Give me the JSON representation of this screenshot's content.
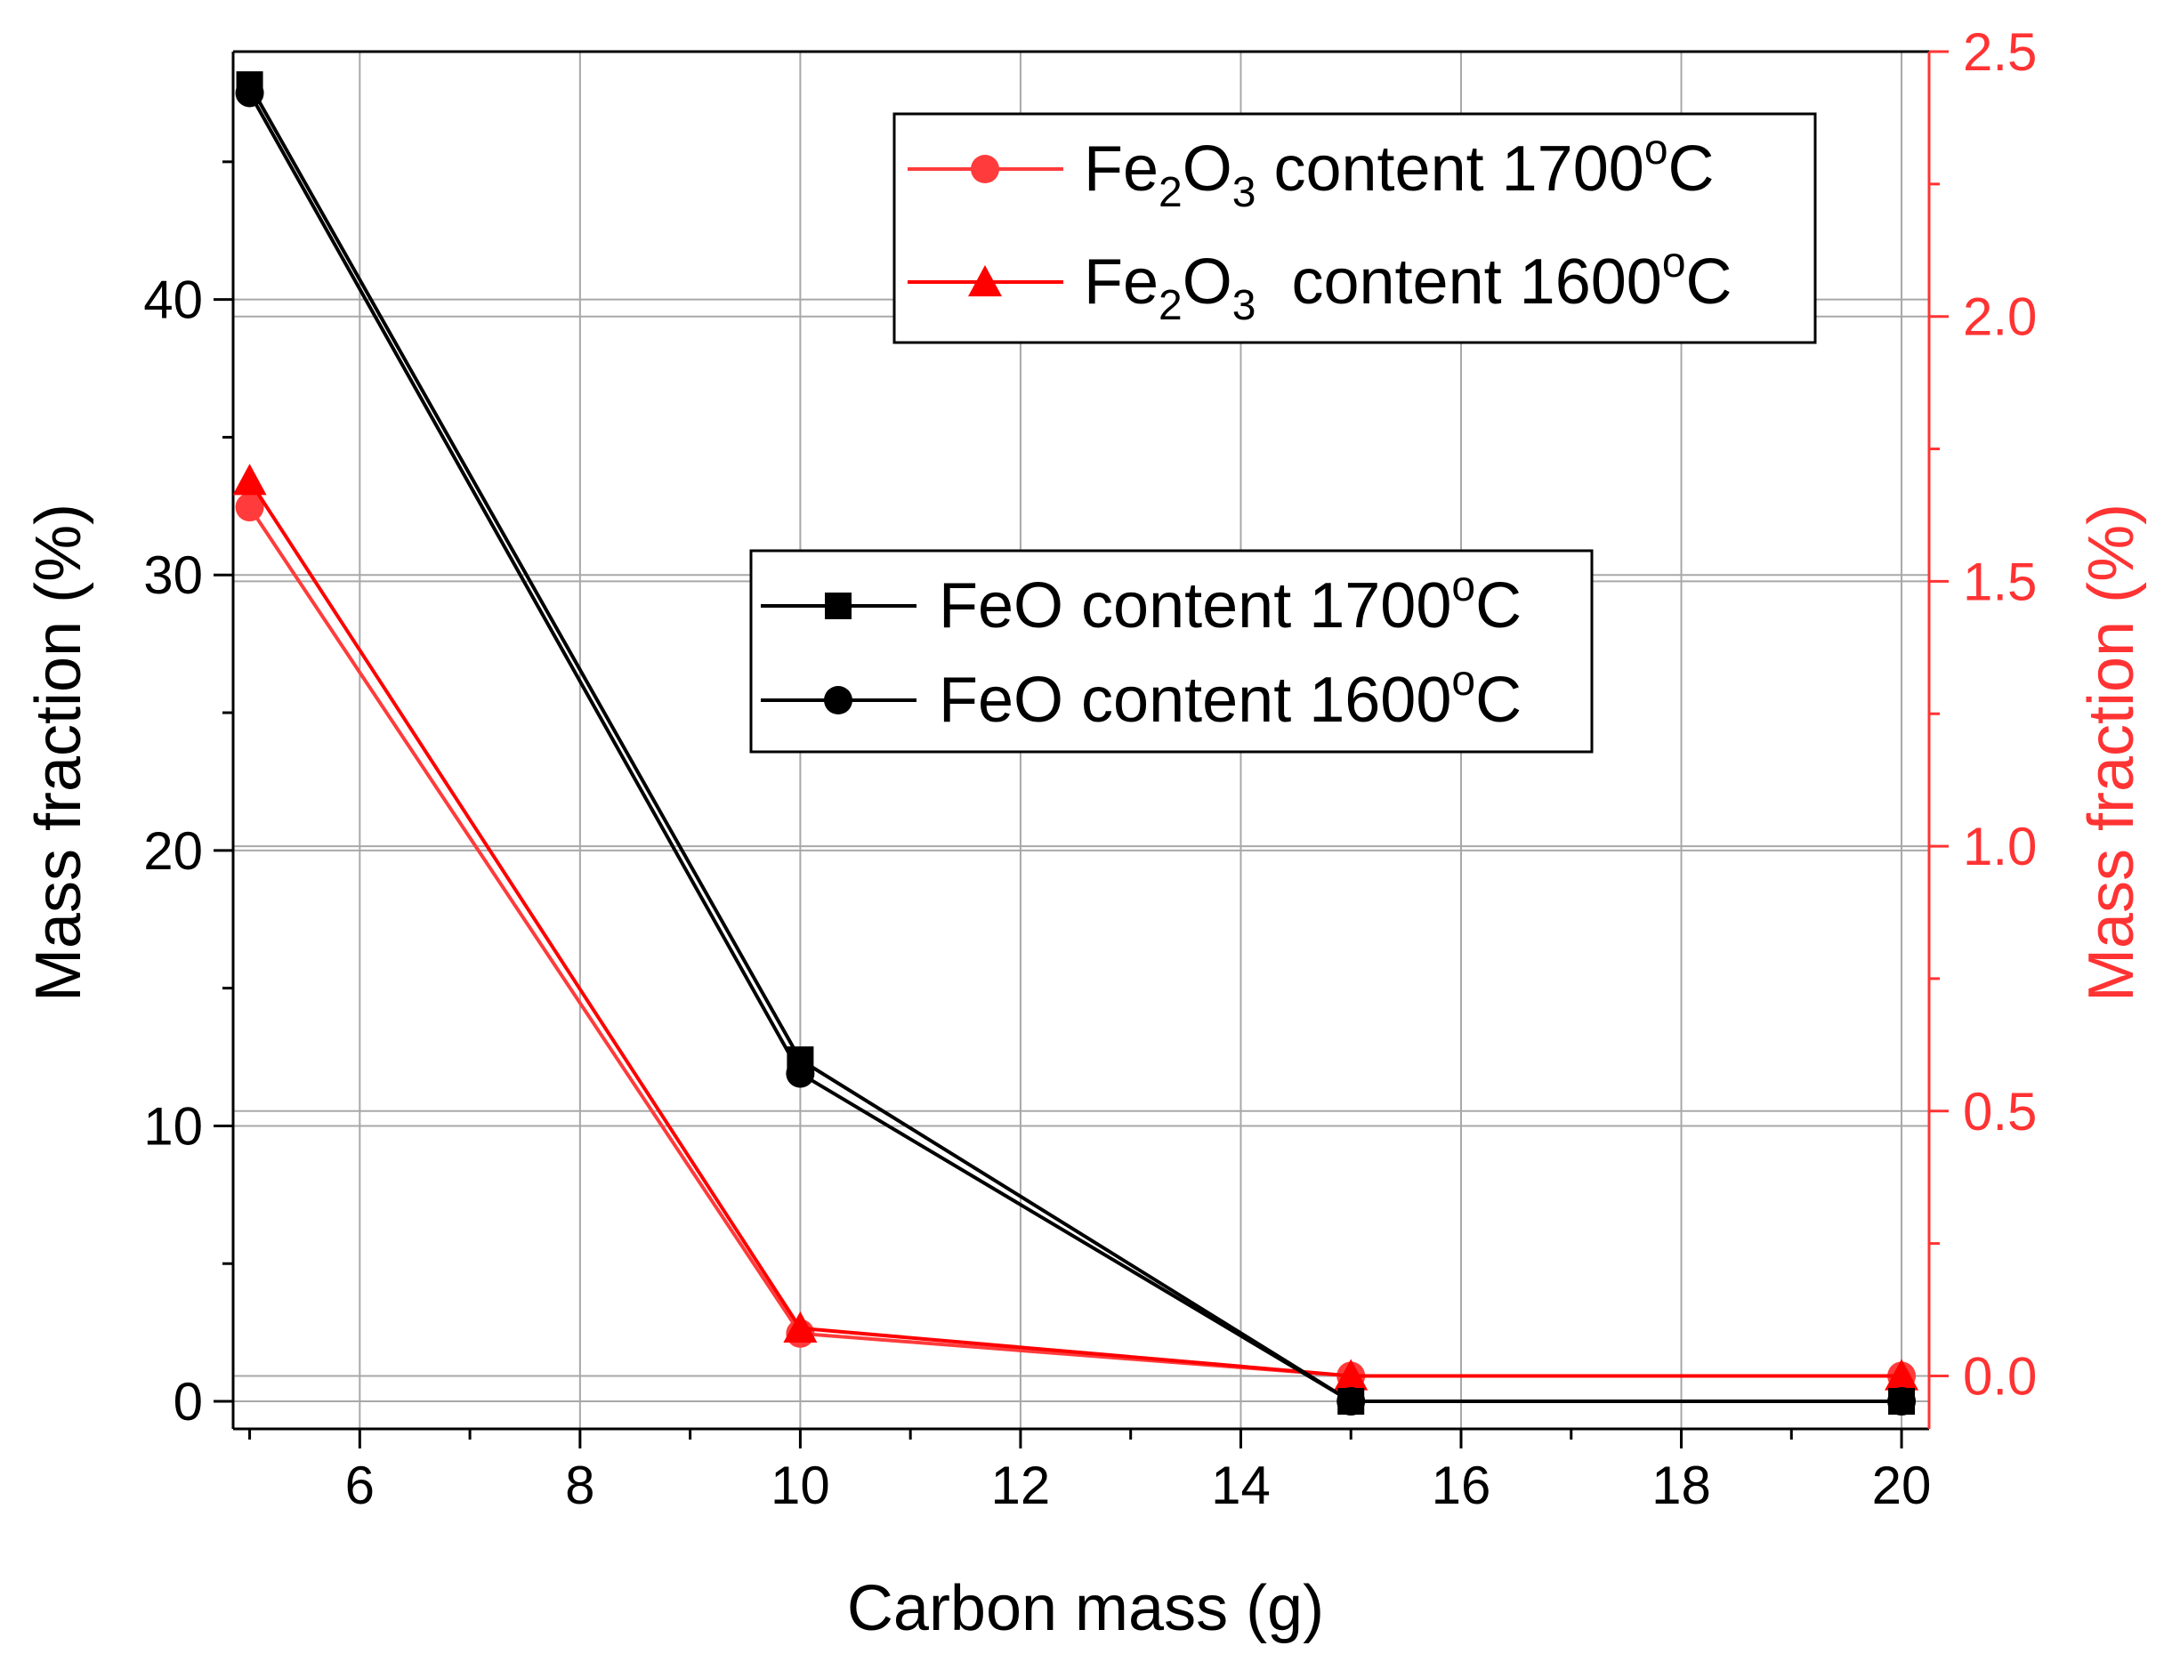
{
  "chart_data": {
    "type": "line",
    "xlabel": "Carbon mass (g)",
    "ylabel_left": "Mass fraction (%)",
    "ylabel_right": "Mass fraction (%)",
    "xlim": [
      4.85,
      20.25
    ],
    "ylim_left": [
      -1.0,
      49.0
    ],
    "ylim_right": [
      -0.1,
      2.5
    ],
    "x_ticks": [
      6,
      8,
      10,
      12,
      14,
      16,
      18,
      20
    ],
    "y_left_ticks": [
      0,
      10,
      20,
      30,
      40
    ],
    "y_right_ticks": [
      "0.0",
      "0.5",
      "1.0",
      "1.5",
      "2.0",
      "2.5"
    ],
    "grid": true,
    "colors": {
      "left_axis": "#000000",
      "right_axis": "#ff3333",
      "red_series": "#ff0000",
      "red_series_light": "#ff3b3b",
      "black_series": "#000000"
    },
    "series": [
      {
        "name": "FeO content 1700oC",
        "axis": "left",
        "marker": "square",
        "color": "#000000",
        "x": [
          5,
          10,
          15,
          20
        ],
        "values": [
          47.8,
          12.4,
          0.0,
          0.0
        ]
      },
      {
        "name": "FeO content 1600oC",
        "axis": "left",
        "marker": "circle",
        "color": "#000000",
        "x": [
          5,
          10,
          15,
          20
        ],
        "values": [
          47.5,
          11.9,
          0.0,
          0.0
        ]
      },
      {
        "name": "Fe2O3 content 1700oC",
        "axis": "right",
        "marker": "circle",
        "color": "#ff3b3b",
        "x": [
          5,
          10,
          15,
          20
        ],
        "values": [
          1.64,
          0.08,
          0.0,
          0.0
        ]
      },
      {
        "name": "Fe2O3 content 1600oC",
        "axis": "right",
        "marker": "triangle",
        "color": "#ff0000",
        "x": [
          5,
          10,
          15,
          20
        ],
        "values": [
          1.69,
          0.09,
          0.0,
          0.0
        ]
      }
    ],
    "legend_fe2o3": {
      "placement": "top-right",
      "entries": [
        {
          "base": "Fe",
          "sub1": "2",
          "mid": "O",
          "sub2": "3",
          "rest": " content 1700",
          "deg": "o",
          "unit": "C"
        },
        {
          "base": "Fe",
          "sub1": "2",
          "mid": "O",
          "sub2": "3",
          "rest": "  content 1600",
          "deg": "o",
          "unit": "C"
        }
      ]
    },
    "legend_feo": {
      "placement": "center",
      "entries": [
        {
          "text": "FeO content 1700",
          "deg": "o",
          "unit": "C"
        },
        {
          "text": "FeO content 1600",
          "deg": "o",
          "unit": "C"
        }
      ]
    }
  }
}
